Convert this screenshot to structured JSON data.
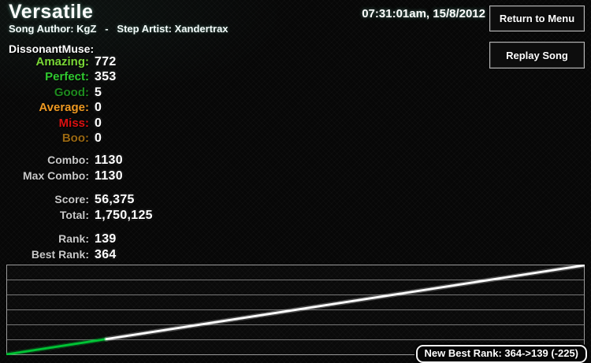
{
  "header": {
    "title": "Versatile",
    "credits": "Song Author: KgZ   -   Step Artist: Xandertrax",
    "timestamp": "07:31:01am, 15/8/2012"
  },
  "buttons": {
    "return_to_menu": "Return to Menu",
    "replay_song": "Replay Song"
  },
  "stats": {
    "player": "DissonantMuse:",
    "judgments": [
      {
        "label": "Amazing:",
        "value": "772",
        "color": "#79d636"
      },
      {
        "label": "Perfect:",
        "value": "353",
        "color": "#30c930"
      },
      {
        "label": "Good:",
        "value": "5",
        "color": "#1e8a1e"
      },
      {
        "label": "Average:",
        "value": "0",
        "color": "#ee9922"
      },
      {
        "label": "Miss:",
        "value": "0",
        "color": "#dd1111"
      },
      {
        "label": "Boo:",
        "value": "0",
        "color": "#9a6812"
      }
    ],
    "combo": [
      {
        "label": "Combo:",
        "value": "1130"
      },
      {
        "label": "Max Combo:",
        "value": "1130"
      }
    ],
    "score": [
      {
        "label": "Score:",
        "value": "56,375"
      },
      {
        "label": "Total:",
        "value": "1,750,125"
      }
    ],
    "rank": [
      {
        "label": "Rank:",
        "value": "139"
      },
      {
        "label": "Best Rank:",
        "value": "364"
      }
    ]
  },
  "badge": {
    "text": "New Best Rank: 364->139 (-225)"
  },
  "chart_data": {
    "type": "line",
    "title": "",
    "xlabel": "",
    "ylabel": "",
    "x_range": [
      0,
      1
    ],
    "y_range": [
      0,
      1
    ],
    "h_gridlines": 7,
    "grid_color": "#787878",
    "border_color": "#9a9a9a",
    "legend": "none",
    "series": [
      {
        "name": "score-progress-start",
        "color": "#00c435",
        "points": [
          [
            0,
            0
          ],
          [
            0.172,
            0.172
          ]
        ]
      },
      {
        "name": "score-progress",
        "color": "#ffffff",
        "points": [
          [
            0.172,
            0.172
          ],
          [
            1,
            1
          ]
        ]
      }
    ]
  }
}
